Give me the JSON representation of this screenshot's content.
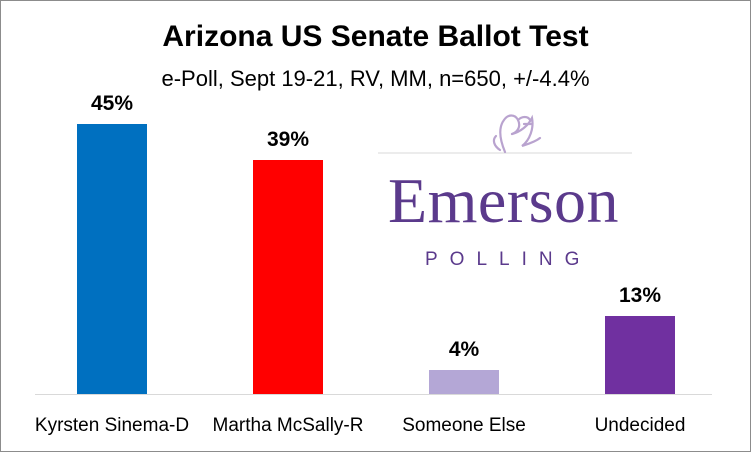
{
  "chart_data": {
    "type": "bar",
    "title": "Arizona US Senate Ballot Test",
    "subtitle": "e-Poll, Sept 19-21, RV, MM, n=650, +/-4.4%",
    "categories": [
      "Kyrsten Sinema-D",
      "Martha McSally-R",
      "Someone Else",
      "Undecided"
    ],
    "values": [
      45,
      39,
      4,
      13
    ],
    "data_labels": [
      "45%",
      "39%",
      "4%",
      "13%"
    ],
    "colors": [
      "#0070c0",
      "#ff0000",
      "#b4a7d6",
      "#7030a0"
    ],
    "ylim": [
      0,
      50
    ],
    "grid": false,
    "legend": "none"
  },
  "logo": {
    "wordmark": "Emerson",
    "subtext": "POLLING",
    "color": "#5b3a8c",
    "icon": "lion-crest-icon"
  }
}
